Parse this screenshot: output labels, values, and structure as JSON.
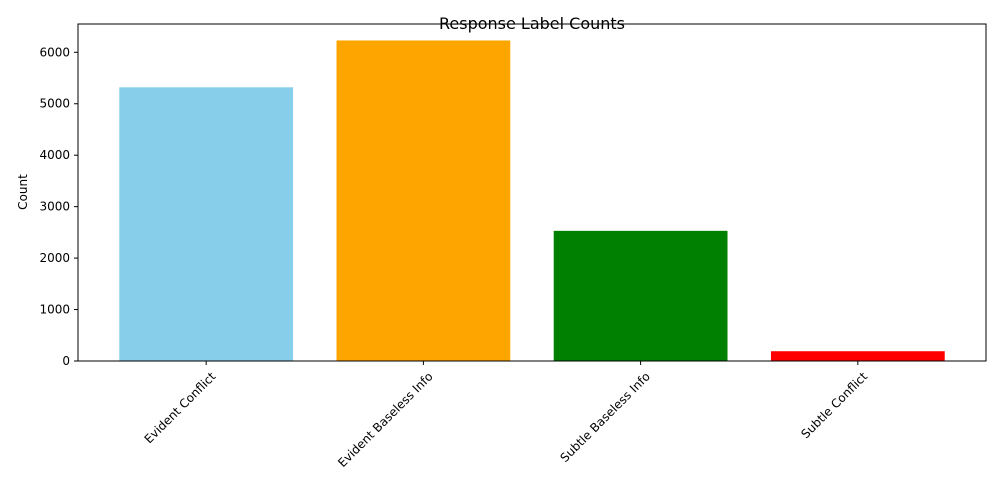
{
  "chart_data": {
    "type": "bar",
    "title": "Response Label Counts",
    "xlabel": "",
    "ylabel": "Count",
    "categories": [
      "Evident Conflict",
      "Evident Baseless Info",
      "Subtle Baseless Info",
      "Subtle Conflict"
    ],
    "values": [
      5320,
      6230,
      2530,
      190
    ],
    "colors": [
      "#87ceeb",
      "#ffa500",
      "#008000",
      "#ff0000"
    ],
    "ylim": [
      0,
      6550
    ],
    "yticks": [
      0,
      1000,
      2000,
      3000,
      4000,
      5000,
      6000
    ],
    "grid": false,
    "legend": "none"
  }
}
